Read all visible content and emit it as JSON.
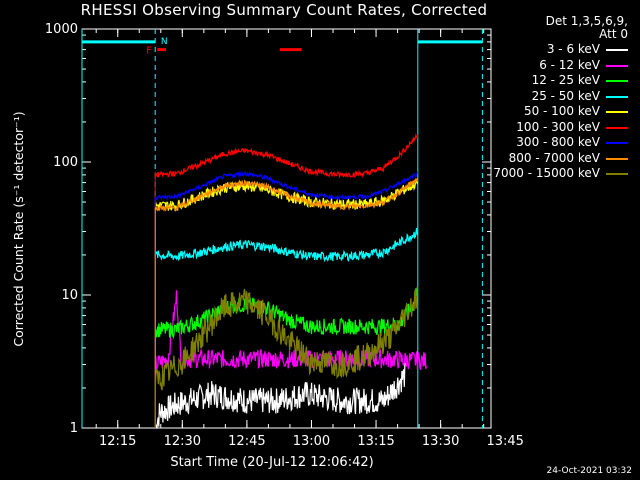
{
  "chart_data": {
    "type": "line",
    "title": "RHESSI Observing Summary Count Rates, Corrected",
    "ylabel": "Corrected Count Rate (s⁻¹ detector⁻¹)",
    "xlabel": "Start Time (20-Jul-12 12:06:42)",
    "y_scale": "log",
    "ylim": [
      1,
      1000
    ],
    "y_ticks": [
      {
        "value": 1,
        "label": "1"
      },
      {
        "value": 10,
        "label": "10"
      },
      {
        "value": 100,
        "label": "100"
      },
      {
        "value": 1000,
        "label": "1000"
      }
    ],
    "x_unit": "minutes after 12:06:42",
    "xlim": [
      0,
      95
    ],
    "x_ticks": [
      {
        "value": 8.3,
        "label": "12:15"
      },
      {
        "value": 23.3,
        "label": "12:30"
      },
      {
        "value": 38.3,
        "label": "12:45"
      },
      {
        "value": 53.3,
        "label": "13:00"
      },
      {
        "value": 68.3,
        "label": "13:15"
      },
      {
        "value": 83.3,
        "label": "13:30"
      },
      {
        "value": 98.3,
        "label": "13:45"
      }
    ],
    "legend_header": [
      "Det 1,3,5,6,9,",
      "Att 0"
    ],
    "legend_position": "right, outside plot",
    "series": [
      {
        "name": "3 - 6 keV",
        "color": "#ffffff",
        "points": [
          [
            17,
            1
          ],
          [
            18,
            1.3
          ],
          [
            22,
            1.5
          ],
          [
            30,
            1.8
          ],
          [
            38,
            1.6
          ],
          [
            45,
            1.6
          ],
          [
            52,
            1.8
          ],
          [
            60,
            1.6
          ],
          [
            66,
            1.6
          ],
          [
            70,
            1.6
          ],
          [
            75,
            2.5
          ]
        ]
      },
      {
        "name": "6 - 12 keV",
        "color": "#ff00ff",
        "points": [
          [
            17,
            3
          ],
          [
            20,
            3.3
          ],
          [
            22,
            10
          ],
          [
            23,
            3.3
          ],
          [
            30,
            3.3
          ],
          [
            40,
            3.3
          ],
          [
            50,
            3.3
          ],
          [
            60,
            3.3
          ],
          [
            70,
            3.3
          ],
          [
            80,
            3.2
          ]
        ]
      },
      {
        "name": "12 - 25 keV",
        "color": "#00ff00",
        "points": [
          [
            17,
            5.5
          ],
          [
            22,
            5.5
          ],
          [
            28,
            6.5
          ],
          [
            33,
            8
          ],
          [
            38,
            8.5
          ],
          [
            43,
            8
          ],
          [
            48,
            6.5
          ],
          [
            53,
            5.8
          ],
          [
            60,
            5.8
          ],
          [
            66,
            5.8
          ],
          [
            70,
            5.8
          ],
          [
            74,
            6.2
          ],
          [
            77,
            8.5
          ],
          [
            78,
            12
          ]
        ]
      },
      {
        "name": "25 - 50 keV",
        "color": "#00ffff",
        "points": [
          [
            17,
            20
          ],
          [
            22,
            19.5
          ],
          [
            28,
            21
          ],
          [
            33,
            23
          ],
          [
            38,
            24
          ],
          [
            43,
            23
          ],
          [
            48,
            21
          ],
          [
            53,
            19.5
          ],
          [
            60,
            19.5
          ],
          [
            66,
            20
          ],
          [
            70,
            21
          ],
          [
            74,
            25
          ],
          [
            78,
            30
          ]
        ]
      },
      {
        "name": "50 - 100 keV",
        "color": "#ffff00",
        "points": [
          [
            17,
            47
          ],
          [
            22,
            47
          ],
          [
            28,
            56
          ],
          [
            33,
            64
          ],
          [
            38,
            66
          ],
          [
            43,
            62
          ],
          [
            48,
            55
          ],
          [
            53,
            50
          ],
          [
            60,
            48
          ],
          [
            66,
            48
          ],
          [
            70,
            51
          ],
          [
            74,
            60
          ],
          [
            78,
            70
          ]
        ]
      },
      {
        "name": "100 - 300 keV",
        "color": "#ff0000",
        "points": [
          [
            17,
            80
          ],
          [
            22,
            82
          ],
          [
            28,
            98
          ],
          [
            33,
            115
          ],
          [
            38,
            122
          ],
          [
            43,
            113
          ],
          [
            48,
            98
          ],
          [
            53,
            85
          ],
          [
            60,
            80
          ],
          [
            66,
            82
          ],
          [
            70,
            90
          ],
          [
            74,
            115
          ],
          [
            78,
            160
          ]
        ]
      },
      {
        "name": "300 - 800 keV",
        "color": "#0000ff",
        "points": [
          [
            17,
            54
          ],
          [
            22,
            55
          ],
          [
            28,
            66
          ],
          [
            33,
            78
          ],
          [
            38,
            82
          ],
          [
            43,
            76
          ],
          [
            48,
            65
          ],
          [
            53,
            57
          ],
          [
            60,
            54
          ],
          [
            66,
            55
          ],
          [
            70,
            60
          ],
          [
            74,
            70
          ],
          [
            78,
            82
          ]
        ]
      },
      {
        "name": "800 - 7000 keV",
        "color": "#ff8c00",
        "points": [
          [
            17,
            45
          ],
          [
            22,
            45
          ],
          [
            28,
            56
          ],
          [
            33,
            66
          ],
          [
            38,
            70
          ],
          [
            43,
            65
          ],
          [
            48,
            56
          ],
          [
            53,
            49
          ],
          [
            60,
            46
          ],
          [
            66,
            47
          ],
          [
            70,
            50
          ],
          [
            74,
            60
          ],
          [
            78,
            75
          ]
        ]
      },
      {
        "name": "7000 - 15000 keV",
        "color": "#808000",
        "points": [
          [
            17,
            2.2
          ],
          [
            20,
            2.6
          ],
          [
            24,
            3.3
          ],
          [
            28,
            5
          ],
          [
            33,
            8
          ],
          [
            38,
            9
          ],
          [
            43,
            7
          ],
          [
            48,
            4.5
          ],
          [
            53,
            3.2
          ],
          [
            60,
            3
          ],
          [
            66,
            3.5
          ],
          [
            72,
            5
          ],
          [
            76,
            8
          ],
          [
            78,
            10
          ]
        ]
      }
    ],
    "annotations": [
      "F",
      "N"
    ],
    "flags": [
      {
        "name": "saa",
        "color": "#00ffff",
        "y": 800,
        "ranges": [
          [
            0,
            17
          ],
          [
            78,
            93
          ]
        ]
      },
      {
        "name": "flare",
        "color": "#ff0000",
        "y": 700,
        "ranges": [
          [
            17.5,
            19.5
          ],
          [
            46,
            51
          ]
        ]
      }
    ],
    "vertical_lines": [
      {
        "x": 0,
        "style": "solid",
        "color": "#00ffff"
      },
      {
        "x": 17,
        "style": "dashed",
        "color": "#00ffff"
      },
      {
        "x": 78,
        "style": "solid",
        "color": "#00ffff"
      },
      {
        "x": 93,
        "style": "dashed",
        "color": "#00ffff"
      }
    ]
  },
  "footer": {
    "timestamp": "24-Oct-2021 03:32"
  }
}
